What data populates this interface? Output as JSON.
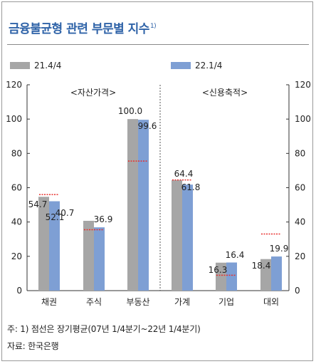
{
  "title": "금융불균형 관련 부문별 지수",
  "title_sup": "1)",
  "legend": [
    {
      "label": "21.4/4",
      "color": "#a6a6a6"
    },
    {
      "label": "22.1/4",
      "color": "#7e9fd4"
    }
  ],
  "group_labels": [
    "<자산가격>",
    "<신용축적>"
  ],
  "notes": {
    "note1": "주: 1) 점선은 장기평균(07년 1/4분기~22년 1/4분기)",
    "source": "자료: 한국은행"
  },
  "colors": {
    "title": "#2f63a8",
    "series1": "#a6a6a6",
    "series2": "#7e9fd4",
    "average_line": "#e8312f"
  },
  "chart_data": {
    "type": "bar",
    "categories": [
      "채권",
      "주식",
      "부동산",
      "가계",
      "기업",
      "대외"
    ],
    "series": [
      {
        "name": "21.4/4",
        "values": [
          54.7,
          40.7,
          100.0,
          64.4,
          16.3,
          18.4
        ]
      },
      {
        "name": "22.1/4",
        "values": [
          52.1,
          36.9,
          99.6,
          61.8,
          16.4,
          19.9
        ]
      }
    ],
    "value_labels": [
      [
        "54.7",
        "40.7",
        "100.0",
        "64.4",
        "16.3",
        "18.4"
      ],
      [
        "52.1",
        "36.9",
        "99.6",
        "61.8",
        "16.4",
        "19.9"
      ]
    ],
    "long_term_average": [
      56,
      35.5,
      75.5,
      64.5,
      9,
      33
    ],
    "ylim": [
      0,
      120
    ],
    "yticks": [
      "0",
      "20",
      "40",
      "60",
      "80",
      "100",
      "120"
    ],
    "secondary_axis": true,
    "xlabel": "",
    "ylabel": ""
  }
}
